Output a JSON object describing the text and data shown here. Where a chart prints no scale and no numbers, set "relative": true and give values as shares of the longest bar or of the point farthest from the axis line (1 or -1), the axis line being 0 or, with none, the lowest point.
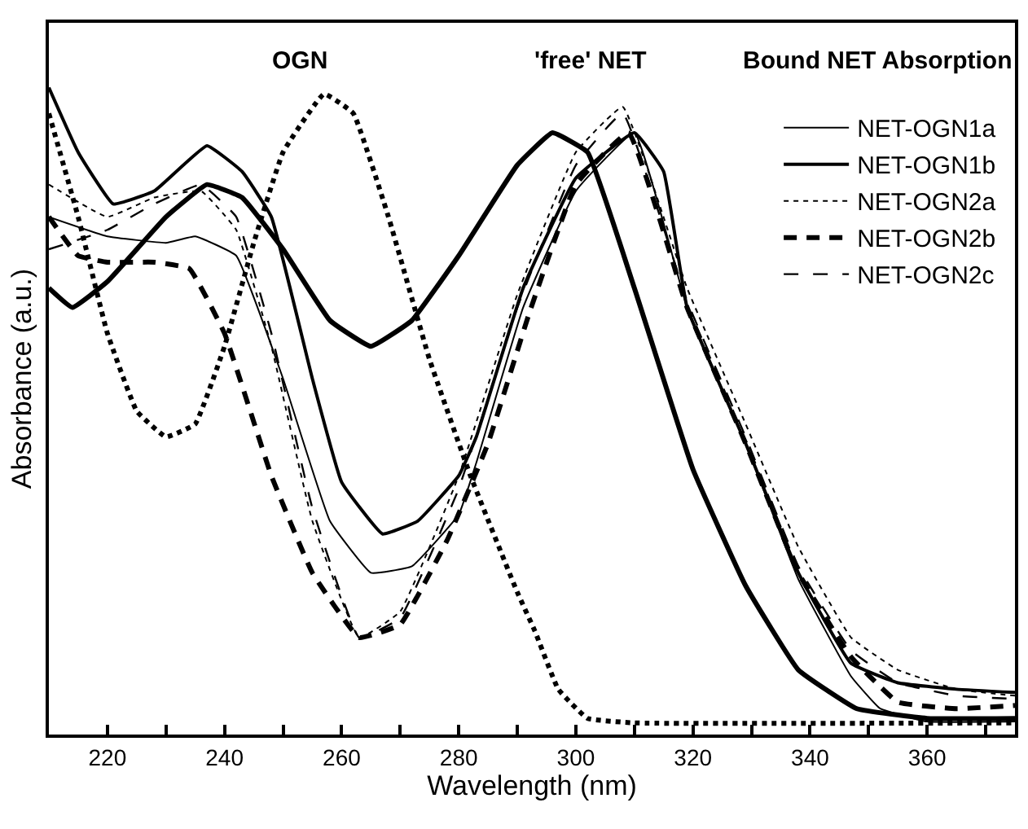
{
  "chart_data": {
    "type": "line",
    "relative": true,
    "xlabel": "Wavelength (nm)",
    "ylabel": "Absorbance (a.u.)",
    "xlim": [
      210,
      375
    ],
    "xticks": [
      220,
      {
        "value": 230,
        "label": null
      },
      240,
      {
        "value": 250,
        "label": null
      },
      260,
      {
        "value": 270,
        "label": null
      },
      280,
      {
        "value": 290,
        "label": null
      },
      300,
      {
        "value": 310,
        "label": null
      },
      320,
      {
        "value": 330,
        "label": null
      },
      340,
      {
        "value": 350,
        "label": null
      },
      360,
      {
        "value": 370,
        "label": null
      }
    ],
    "legend": "top right",
    "annotations": [
      "OGN",
      "'free' NET",
      "Bound NET Absorption"
    ],
    "series": [
      {
        "name": "NET-OGN1a",
        "color": "#000000",
        "line_style": "solid",
        "x": [
          210,
          220,
          230,
          235,
          242,
          250,
          258,
          265,
          272,
          280,
          283,
          291,
          300,
          310,
          319,
          329,
          338,
          347,
          352,
          360,
          375
        ],
        "values": [
          0.8,
          0.77,
          0.76,
          0.77,
          0.74,
          0.55,
          0.33,
          0.25,
          0.26,
          0.34,
          0.42,
          0.66,
          0.84,
          0.93,
          0.66,
          0.45,
          0.24,
          0.09,
          0.04,
          0.02,
          0.02
        ]
      },
      {
        "name": "NET-OGN1b",
        "color": "#000000",
        "line_style": "solid",
        "x": [
          210,
          215,
          221,
          228,
          237,
          243,
          248,
          255,
          260,
          267,
          273,
          280,
          283,
          291,
          300,
          310,
          315,
          319,
          329,
          338,
          347,
          355,
          365,
          375
        ],
        "values": [
          1.0,
          0.9,
          0.82,
          0.84,
          0.91,
          0.87,
          0.8,
          0.55,
          0.39,
          0.31,
          0.33,
          0.4,
          0.46,
          0.69,
          0.86,
          0.93,
          0.87,
          0.66,
          0.45,
          0.25,
          0.11,
          0.08,
          0.07,
          0.065
        ]
      },
      {
        "name": "NET-OGN2a",
        "color": "#000000",
        "line_style": "dotted",
        "x": [
          210,
          220,
          228,
          236,
          242,
          248,
          255,
          263,
          270,
          280,
          290,
          300,
          308,
          319,
          329,
          338,
          347,
          355,
          365,
          375
        ],
        "values": [
          0.85,
          0.8,
          0.83,
          0.84,
          0.78,
          0.6,
          0.33,
          0.15,
          0.19,
          0.4,
          0.68,
          0.9,
          0.97,
          0.69,
          0.48,
          0.29,
          0.15,
          0.1,
          0.07,
          0.06
        ]
      },
      {
        "name": "NET-OGN2b",
        "color": "#000000",
        "line_style": "dashed",
        "x": [
          210,
          215,
          220,
          228,
          234,
          240,
          248,
          255,
          263,
          270,
          278,
          285,
          292,
          300,
          309,
          319,
          329,
          338,
          347,
          355,
          365,
          375
        ],
        "values": [
          0.8,
          0.74,
          0.73,
          0.73,
          0.72,
          0.62,
          0.4,
          0.25,
          0.15,
          0.17,
          0.3,
          0.45,
          0.65,
          0.85,
          0.93,
          0.66,
          0.45,
          0.25,
          0.12,
          0.05,
          0.04,
          0.045
        ]
      },
      {
        "name": "NET-OGN2c",
        "color": "#000000",
        "line_style": "dashed",
        "x": [
          210,
          220,
          228,
          236,
          242,
          248,
          255,
          263,
          270,
          280,
          290,
          300,
          308,
          319,
          329,
          338,
          347,
          355,
          365,
          375
        ],
        "values": [
          0.75,
          0.78,
          0.82,
          0.85,
          0.8,
          0.62,
          0.35,
          0.15,
          0.18,
          0.38,
          0.66,
          0.88,
          0.96,
          0.67,
          0.46,
          0.26,
          0.13,
          0.08,
          0.06,
          0.055
        ]
      },
      {
        "color": "#000000",
        "line_style": "solid",
        "x": [
          210,
          214,
          220,
          230,
          237,
          243,
          250,
          258,
          265,
          272,
          280,
          290,
          296,
          302,
          310,
          320,
          329,
          338,
          348,
          360,
          375
        ],
        "values": [
          0.69,
          0.66,
          0.7,
          0.8,
          0.85,
          0.83,
          0.75,
          0.64,
          0.6,
          0.64,
          0.74,
          0.88,
          0.93,
          0.9,
          0.69,
          0.41,
          0.23,
          0.1,
          0.04,
          0.025,
          0.025
        ]
      },
      {
        "color": "#000000",
        "line_style": "dotted",
        "x": [
          210,
          215,
          220,
          225,
          230,
          235,
          240,
          245,
          250,
          257,
          262,
          268,
          275,
          282,
          290,
          293,
          297,
          302,
          310,
          375
        ],
        "values": [
          0.96,
          0.8,
          0.62,
          0.5,
          0.46,
          0.48,
          0.6,
          0.76,
          0.9,
          0.99,
          0.96,
          0.8,
          0.58,
          0.4,
          0.22,
          0.16,
          0.07,
          0.025,
          0.018,
          0.018
        ]
      }
    ]
  }
}
